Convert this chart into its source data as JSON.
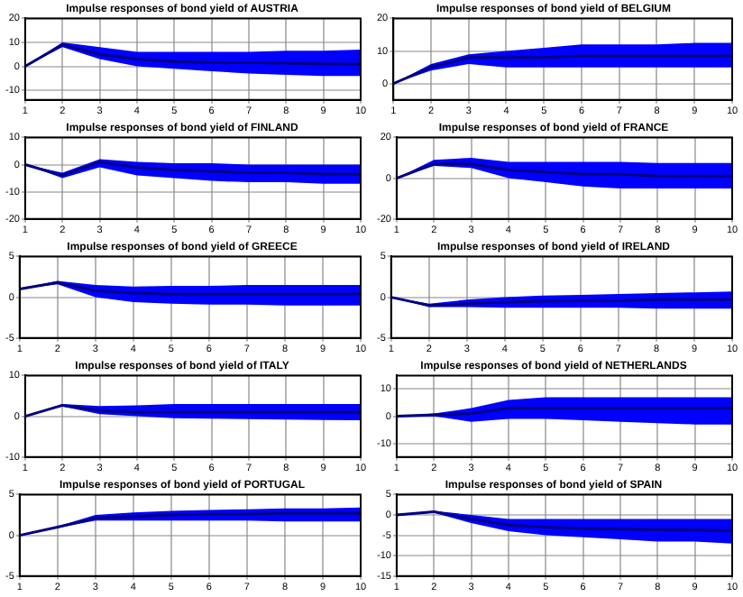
{
  "chart_data": [
    {
      "type": "line",
      "title": "Impulse responses of bond yield of AUSTRIA",
      "x": [
        1,
        2,
        3,
        4,
        5,
        6,
        7,
        8,
        9,
        10
      ],
      "xlim": [
        1,
        10
      ],
      "xticks": [
        1,
        2,
        3,
        4,
        5,
        6,
        7,
        8,
        9,
        10
      ],
      "ylim": [
        -14,
        20
      ],
      "yticks": [
        -10,
        0,
        10,
        20
      ],
      "grid": true,
      "legend": false,
      "marker": "none",
      "series": [
        {
          "color": "#000080",
          "values": [
            0,
            9,
            5,
            3,
            2,
            1.7,
            1.5,
            1.3,
            1.1,
            1
          ],
          "lower": [
            0,
            8,
            3,
            0,
            -1,
            -2,
            -3,
            -3.5,
            -4,
            -4
          ],
          "upper": [
            0,
            10,
            8,
            6,
            6,
            6,
            6,
            6.5,
            6.5,
            7
          ]
        }
      ]
    },
    {
      "type": "line",
      "title": "Impulse responses of bond yield of BELGIUM",
      "x": [
        1,
        2,
        3,
        4,
        5,
        6,
        7,
        8,
        9,
        10
      ],
      "xlim": [
        1,
        10
      ],
      "xticks": [
        1,
        2,
        3,
        4,
        5,
        6,
        7,
        8,
        9,
        10
      ],
      "ylim": [
        -5,
        20
      ],
      "yticks": [
        0,
        10,
        20
      ],
      "grid": true,
      "legend": false,
      "marker": "none",
      "series": [
        {
          "color": "#000080",
          "values": [
            0,
            5,
            8,
            8,
            8,
            8.5,
            8.5,
            8.5,
            8.5,
            8.5
          ],
          "lower": [
            0,
            4,
            6,
            5,
            5,
            5,
            5,
            5,
            5,
            5
          ],
          "upper": [
            0,
            6,
            9,
            10,
            11,
            12,
            12,
            12,
            12.5,
            12.5
          ]
        }
      ]
    },
    {
      "type": "line",
      "title": "Impulse responses of bond yield of FINLAND",
      "x": [
        1,
        2,
        3,
        4,
        5,
        6,
        7,
        8,
        9,
        10
      ],
      "xlim": [
        1,
        10
      ],
      "xticks": [
        1,
        2,
        3,
        4,
        5,
        6,
        7,
        8,
        9,
        10
      ],
      "ylim": [
        -20,
        10
      ],
      "yticks": [
        -20,
        -10,
        0,
        10
      ],
      "grid": true,
      "legend": false,
      "marker": "none",
      "series": [
        {
          "color": "#000080",
          "values": [
            0,
            -4,
            1,
            -1,
            -2,
            -2.5,
            -3,
            -3,
            -3.5,
            -3.5
          ],
          "lower": [
            0,
            -5,
            -1,
            -4,
            -5,
            -6,
            -6.5,
            -6.5,
            -7,
            -7
          ],
          "upper": [
            0,
            -3,
            2,
            1,
            0.5,
            0.5,
            0,
            0,
            0,
            0
          ]
        }
      ]
    },
    {
      "type": "line",
      "title": "Impulse responses of bond yield of FRANCE",
      "x": [
        1,
        2,
        3,
        4,
        5,
        6,
        7,
        8,
        9,
        10
      ],
      "xlim": [
        1,
        10
      ],
      "xticks": [
        1,
        2,
        3,
        4,
        5,
        6,
        7,
        8,
        9,
        10
      ],
      "ylim": [
        -20,
        20
      ],
      "yticks": [
        -20,
        0,
        20
      ],
      "grid": true,
      "legend": false,
      "marker": "none",
      "series": [
        {
          "color": "#000080",
          "values": [
            0,
            7,
            7,
            4,
            3,
            2,
            2,
            1,
            1,
            1
          ],
          "lower": [
            0,
            6,
            5,
            0,
            -2,
            -4,
            -5,
            -5,
            -5,
            -5
          ],
          "upper": [
            0,
            9,
            10,
            8,
            8,
            8,
            8,
            7.5,
            7.5,
            7.5
          ]
        }
      ]
    },
    {
      "type": "line",
      "title": "Impulse responses of bond yield of GREECE",
      "x": [
        1,
        2,
        3,
        4,
        5,
        6,
        7,
        8,
        9,
        10
      ],
      "xlim": [
        1,
        10
      ],
      "xticks": [
        1,
        2,
        3,
        4,
        5,
        6,
        7,
        8,
        9,
        10
      ],
      "ylim": [
        -5,
        5
      ],
      "yticks": [
        -5,
        0,
        5
      ],
      "grid": true,
      "legend": false,
      "marker": "none",
      "series": [
        {
          "color": "#000080",
          "values": [
            1,
            1.8,
            0.8,
            0.5,
            0.4,
            0.4,
            0.4,
            0.4,
            0.4,
            0.4
          ],
          "lower": [
            1,
            1.6,
            0,
            -0.6,
            -0.8,
            -0.9,
            -0.9,
            -1,
            -1,
            -1
          ],
          "upper": [
            1,
            2,
            1.5,
            1.3,
            1.4,
            1.4,
            1.5,
            1.5,
            1.5,
            1.5
          ]
        }
      ]
    },
    {
      "type": "line",
      "title": "Impulse responses of bond yield of IRELAND",
      "x": [
        1,
        2,
        3,
        4,
        5,
        6,
        7,
        8,
        9,
        10
      ],
      "xlim": [
        1,
        10
      ],
      "xticks": [
        1,
        2,
        3,
        4,
        5,
        6,
        7,
        8,
        9,
        10
      ],
      "ylim": [
        -5,
        5
      ],
      "yticks": [
        -5,
        0,
        5
      ],
      "grid": true,
      "legend": false,
      "marker": "none",
      "series": [
        {
          "color": "#000080",
          "values": [
            0,
            -1,
            -0.8,
            -0.6,
            -0.5,
            -0.4,
            -0.4,
            -0.3,
            -0.3,
            -0.3
          ],
          "lower": [
            0,
            -1.2,
            -1.2,
            -1.3,
            -1.3,
            -1.3,
            -1.3,
            -1.4,
            -1.4,
            -1.4
          ],
          "upper": [
            0,
            -0.8,
            -0.3,
            0,
            0.2,
            0.3,
            0.4,
            0.5,
            0.6,
            0.7
          ]
        }
      ]
    },
    {
      "type": "line",
      "title": "Impulse responses of bond yield of ITALY",
      "x": [
        1,
        2,
        3,
        4,
        5,
        6,
        7,
        8,
        9,
        10
      ],
      "xlim": [
        1,
        10
      ],
      "xticks": [
        1,
        2,
        3,
        4,
        5,
        6,
        7,
        8,
        9,
        10
      ],
      "ylim": [
        -10,
        10
      ],
      "yticks": [
        -10,
        0,
        10
      ],
      "grid": true,
      "legend": false,
      "marker": "none",
      "series": [
        {
          "color": "#000080",
          "values": [
            0,
            2.7,
            1.4,
            1,
            1,
            1,
            1,
            1,
            1,
            1
          ],
          "lower": [
            0,
            2.4,
            0.5,
            0,
            -0.5,
            -0.6,
            -0.7,
            -0.8,
            -0.9,
            -1
          ],
          "upper": [
            0,
            3,
            2.5,
            2.7,
            3,
            3,
            3,
            3,
            3,
            3
          ]
        }
      ]
    },
    {
      "type": "line",
      "title": "Impulse responses of bond yield of NETHERLANDS",
      "x": [
        1,
        2,
        3,
        4,
        5,
        6,
        7,
        8,
        9,
        10
      ],
      "xlim": [
        1,
        10
      ],
      "xticks": [
        1,
        2,
        3,
        4,
        5,
        6,
        7,
        8,
        9,
        10
      ],
      "ylim": [
        -15,
        15
      ],
      "yticks": [
        -10,
        0,
        10
      ],
      "grid": true,
      "legend": false,
      "marker": "none",
      "series": [
        {
          "color": "#000080",
          "values": [
            0,
            0.5,
            1,
            3,
            3,
            3,
            3,
            3,
            3,
            3
          ],
          "lower": [
            0,
            0,
            -2,
            -1,
            -1,
            -1.5,
            -2,
            -2.5,
            -3,
            -3
          ],
          "upper": [
            0,
            1,
            3,
            6,
            7,
            7,
            7,
            7,
            7,
            7
          ]
        }
      ]
    },
    {
      "type": "line",
      "title": "Impulse responses of bond yield of PORTUGAL",
      "x": [
        1,
        2,
        3,
        4,
        5,
        6,
        7,
        8,
        9,
        10
      ],
      "xlim": [
        1,
        10
      ],
      "xticks": [
        1,
        2,
        3,
        4,
        5,
        6,
        7,
        8,
        9,
        10
      ],
      "ylim": [
        -5,
        5
      ],
      "yticks": [
        -5,
        0,
        5
      ],
      "grid": true,
      "legend": false,
      "marker": "none",
      "series": [
        {
          "color": "#000080",
          "values": [
            0,
            1,
            2.1,
            2.3,
            2.5,
            2.6,
            2.6,
            2.7,
            2.7,
            2.7
          ],
          "lower": [
            0,
            0.9,
            1.8,
            1.8,
            1.8,
            1.8,
            1.8,
            1.7,
            1.7,
            1.7
          ],
          "upper": [
            0,
            1.1,
            2.5,
            2.8,
            3,
            3.1,
            3.2,
            3.3,
            3.3,
            3.4
          ]
        }
      ]
    },
    {
      "type": "line",
      "title": "Impulse responses of bond yield of SPAIN",
      "x": [
        1,
        2,
        3,
        4,
        5,
        6,
        7,
        8,
        9,
        10
      ],
      "xlim": [
        1,
        10
      ],
      "xticks": [
        1,
        2,
        3,
        4,
        5,
        6,
        7,
        8,
        9,
        10
      ],
      "ylim": [
        -15,
        5
      ],
      "yticks": [
        -15,
        -10,
        -5,
        0,
        5
      ],
      "grid": true,
      "legend": false,
      "marker": "none",
      "series": [
        {
          "color": "#000080",
          "values": [
            0,
            0.8,
            -1,
            -2.5,
            -3,
            -3.3,
            -3.5,
            -3.6,
            -3.7,
            -3.8
          ],
          "lower": [
            0,
            0.5,
            -2,
            -4,
            -5,
            -5.5,
            -6,
            -6.5,
            -6.5,
            -7
          ],
          "upper": [
            0,
            1,
            0,
            -1,
            -1,
            -1,
            -1,
            -1,
            -1,
            -1
          ]
        }
      ]
    }
  ]
}
